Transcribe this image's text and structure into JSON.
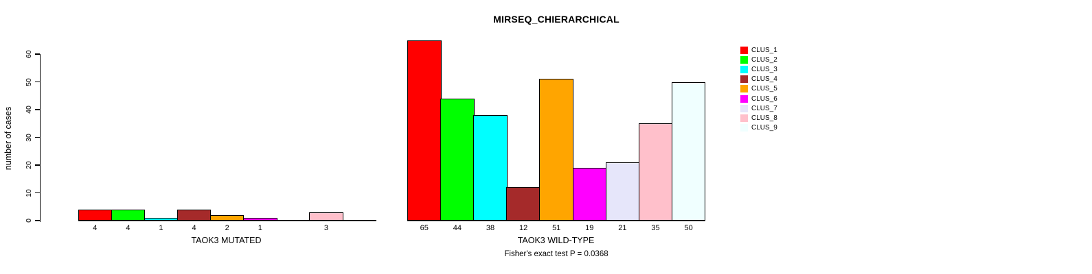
{
  "chart_data": {
    "type": "bar",
    "title": "MIRSEQ_CHIERARCHICAL",
    "ylabel": "number of cases",
    "yticks": [
      0,
      10,
      20,
      30,
      40,
      50,
      60
    ],
    "ylim": [
      0,
      65
    ],
    "grid": false,
    "legend_position": "right",
    "annotation": "Fisher's exact test P = 0.0368",
    "clusters": [
      {
        "label": "CLUS_1",
        "color": "#FF0000"
      },
      {
        "label": "CLUS_2",
        "color": "#00FF00"
      },
      {
        "label": "CLUS_3",
        "color": "#00FFFF"
      },
      {
        "label": "CLUS_4",
        "color": "#A52A2A"
      },
      {
        "label": "CLUS_5",
        "color": "#FFA500"
      },
      {
        "label": "CLUS_6",
        "color": "#FF00FF"
      },
      {
        "label": "CLUS_7",
        "color": "#E6E6FA"
      },
      {
        "label": "CLUS_8",
        "color": "#FFC0CB"
      },
      {
        "label": "CLUS_9",
        "color": "#F0FFFF"
      }
    ],
    "panels": [
      {
        "xlabel": "TAOK3 MUTATED",
        "values": [
          4,
          4,
          1,
          4,
          2,
          1,
          0,
          3,
          0
        ]
      },
      {
        "xlabel": "TAOK3 WILD-TYPE",
        "values": [
          65,
          44,
          38,
          12,
          51,
          19,
          21,
          35,
          50
        ]
      }
    ]
  }
}
